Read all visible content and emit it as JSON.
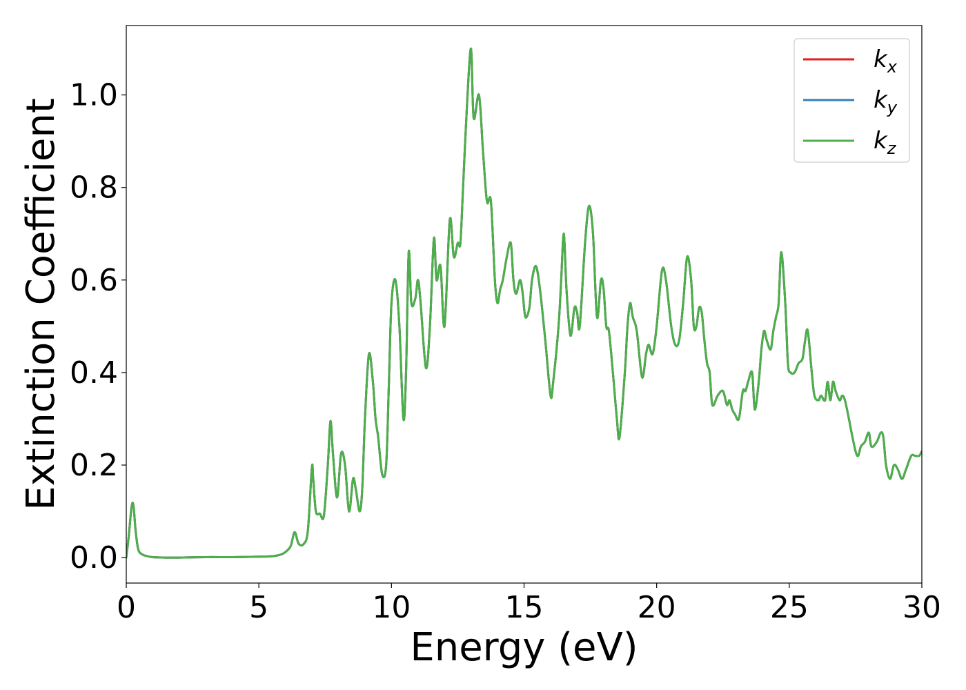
{
  "chart_data": {
    "type": "line",
    "title": "",
    "xlabel": "Energy (eV)",
    "ylabel": "Extinction Coefficient",
    "xlim": [
      0,
      30
    ],
    "ylim": [
      -0.055,
      1.15
    ],
    "xticks": [
      0,
      5,
      10,
      15,
      20,
      25,
      30
    ],
    "xtick_labels": [
      "0",
      "5",
      "10",
      "15",
      "20",
      "25",
      "30"
    ],
    "yticks": [
      0.0,
      0.2,
      0.4,
      0.6,
      0.8,
      1.0
    ],
    "ytick_labels": [
      "0.0",
      "0.2",
      "0.4",
      "0.6",
      "0.8",
      "1.0"
    ],
    "grid": false,
    "legend_position": "top-right",
    "x": [
      0,
      0.1,
      0.2,
      0.27,
      0.35,
      0.45,
      0.6,
      0.8,
      1.0,
      1.5,
      2,
      3,
      4,
      5,
      5.5,
      5.8,
      6.0,
      6.2,
      6.35,
      6.5,
      6.7,
      6.85,
      7.0,
      7.05,
      7.15,
      7.3,
      7.45,
      7.6,
      7.7,
      7.8,
      7.95,
      8.1,
      8.25,
      8.4,
      8.55,
      8.65,
      8.8,
      8.9,
      9.0,
      9.15,
      9.3,
      9.4,
      9.5,
      9.65,
      9.8,
      9.9,
      10.0,
      10.15,
      10.3,
      10.45,
      10.55,
      10.65,
      10.75,
      10.9,
      11.0,
      11.1,
      11.3,
      11.45,
      11.6,
      11.7,
      11.85,
      12.0,
      12.2,
      12.35,
      12.5,
      12.6,
      12.7,
      12.85,
      13.0,
      13.1,
      13.3,
      13.45,
      13.6,
      13.75,
      13.9,
      14.0,
      14.1,
      14.2,
      14.35,
      14.5,
      14.6,
      14.7,
      14.85,
      14.95,
      15.05,
      15.2,
      15.3,
      15.45,
      15.6,
      15.8,
      16.0,
      16.1,
      16.3,
      16.4,
      16.5,
      16.6,
      16.75,
      16.9,
      17.0,
      17.1,
      17.3,
      17.45,
      17.6,
      17.75,
      17.9,
      18.0,
      18.1,
      18.2,
      18.35,
      18.5,
      18.6,
      18.8,
      18.9,
      19.0,
      19.1,
      19.25,
      19.45,
      19.6,
      19.7,
      19.85,
      20.0,
      20.2,
      20.35,
      20.55,
      20.7,
      20.85,
      21.0,
      21.15,
      21.3,
      21.4,
      21.5,
      21.6,
      21.7,
      21.8,
      21.9,
      22.0,
      22.1,
      22.3,
      22.5,
      22.65,
      22.75,
      22.85,
      22.95,
      23.1,
      23.25,
      23.35,
      23.45,
      23.6,
      23.7,
      23.85,
      23.95,
      24.05,
      24.15,
      24.3,
      24.4,
      24.5,
      24.6,
      24.7,
      24.85,
      24.95,
      25.05,
      25.2,
      25.35,
      25.5,
      25.6,
      25.7,
      25.85,
      25.95,
      26.1,
      26.2,
      26.35,
      26.45,
      26.55,
      26.65,
      26.75,
      26.9,
      27.0,
      27.1,
      27.25,
      27.35,
      27.5,
      27.6,
      27.7,
      27.85,
      28.0,
      28.1,
      28.3,
      28.45,
      28.55,
      28.65,
      28.8,
      28.95,
      29.1,
      29.25,
      29.4,
      29.6,
      29.75,
      29.9,
      30.0
    ],
    "series": [
      {
        "name": "k_x",
        "color": "#e41a1c",
        "values": [
          0.0,
          0.05,
          0.11,
          0.113,
          0.06,
          0.018,
          0.007,
          0.003,
          0.001,
          0.0,
          0.0,
          0.001,
          0.001,
          0.002,
          0.003,
          0.006,
          0.012,
          0.025,
          0.055,
          0.03,
          0.03,
          0.06,
          0.195,
          0.17,
          0.1,
          0.095,
          0.09,
          0.2,
          0.295,
          0.22,
          0.13,
          0.225,
          0.2,
          0.1,
          0.17,
          0.15,
          0.1,
          0.15,
          0.3,
          0.44,
          0.38,
          0.3,
          0.26,
          0.18,
          0.2,
          0.37,
          0.55,
          0.6,
          0.5,
          0.3,
          0.4,
          0.66,
          0.55,
          0.56,
          0.6,
          0.55,
          0.41,
          0.5,
          0.69,
          0.6,
          0.63,
          0.5,
          0.73,
          0.65,
          0.68,
          0.68,
          0.8,
          0.98,
          1.1,
          0.95,
          1.0,
          0.88,
          0.77,
          0.77,
          0.6,
          0.55,
          0.58,
          0.6,
          0.65,
          0.68,
          0.6,
          0.57,
          0.6,
          0.57,
          0.52,
          0.54,
          0.6,
          0.63,
          0.58,
          0.47,
          0.35,
          0.38,
          0.5,
          0.6,
          0.7,
          0.58,
          0.48,
          0.54,
          0.53,
          0.5,
          0.68,
          0.76,
          0.7,
          0.52,
          0.6,
          0.58,
          0.5,
          0.49,
          0.4,
          0.3,
          0.26,
          0.4,
          0.5,
          0.55,
          0.52,
          0.49,
          0.39,
          0.44,
          0.46,
          0.44,
          0.5,
          0.62,
          0.6,
          0.5,
          0.46,
          0.47,
          0.55,
          0.65,
          0.6,
          0.5,
          0.5,
          0.54,
          0.53,
          0.47,
          0.42,
          0.4,
          0.33,
          0.35,
          0.36,
          0.33,
          0.34,
          0.32,
          0.31,
          0.3,
          0.36,
          0.36,
          0.38,
          0.4,
          0.32,
          0.38,
          0.45,
          0.49,
          0.47,
          0.45,
          0.49,
          0.52,
          0.55,
          0.66,
          0.55,
          0.42,
          0.4,
          0.4,
          0.42,
          0.43,
          0.47,
          0.49,
          0.4,
          0.35,
          0.34,
          0.35,
          0.34,
          0.38,
          0.34,
          0.38,
          0.36,
          0.34,
          0.35,
          0.34,
          0.3,
          0.27,
          0.23,
          0.22,
          0.24,
          0.25,
          0.27,
          0.24,
          0.25,
          0.27,
          0.26,
          0.2,
          0.17,
          0.2,
          0.19,
          0.17,
          0.19,
          0.22,
          0.22,
          0.22,
          0.23
        ]
      },
      {
        "name": "k_y",
        "color": "#377eb8",
        "values": [
          0.0,
          0.05,
          0.11,
          0.113,
          0.06,
          0.018,
          0.007,
          0.003,
          0.001,
          0.0,
          0.0,
          0.001,
          0.001,
          0.002,
          0.003,
          0.006,
          0.012,
          0.025,
          0.055,
          0.03,
          0.03,
          0.06,
          0.195,
          0.17,
          0.1,
          0.095,
          0.09,
          0.2,
          0.295,
          0.22,
          0.13,
          0.225,
          0.2,
          0.1,
          0.17,
          0.15,
          0.1,
          0.15,
          0.3,
          0.44,
          0.38,
          0.3,
          0.26,
          0.18,
          0.2,
          0.37,
          0.55,
          0.6,
          0.5,
          0.3,
          0.4,
          0.66,
          0.55,
          0.56,
          0.6,
          0.55,
          0.41,
          0.5,
          0.69,
          0.6,
          0.63,
          0.5,
          0.73,
          0.65,
          0.68,
          0.68,
          0.8,
          0.98,
          1.1,
          0.95,
          1.0,
          0.88,
          0.77,
          0.77,
          0.6,
          0.55,
          0.58,
          0.6,
          0.65,
          0.68,
          0.6,
          0.57,
          0.6,
          0.57,
          0.52,
          0.54,
          0.6,
          0.63,
          0.58,
          0.47,
          0.35,
          0.38,
          0.5,
          0.6,
          0.7,
          0.58,
          0.48,
          0.54,
          0.53,
          0.5,
          0.68,
          0.76,
          0.7,
          0.52,
          0.6,
          0.58,
          0.5,
          0.49,
          0.4,
          0.3,
          0.26,
          0.4,
          0.5,
          0.55,
          0.52,
          0.49,
          0.39,
          0.44,
          0.46,
          0.44,
          0.5,
          0.62,
          0.6,
          0.5,
          0.46,
          0.47,
          0.55,
          0.65,
          0.6,
          0.5,
          0.5,
          0.54,
          0.53,
          0.47,
          0.42,
          0.4,
          0.33,
          0.35,
          0.36,
          0.33,
          0.34,
          0.32,
          0.31,
          0.3,
          0.36,
          0.36,
          0.38,
          0.4,
          0.32,
          0.38,
          0.45,
          0.49,
          0.47,
          0.45,
          0.49,
          0.52,
          0.55,
          0.66,
          0.55,
          0.42,
          0.4,
          0.4,
          0.42,
          0.43,
          0.47,
          0.49,
          0.4,
          0.35,
          0.34,
          0.35,
          0.34,
          0.38,
          0.34,
          0.38,
          0.36,
          0.34,
          0.35,
          0.34,
          0.3,
          0.27,
          0.23,
          0.22,
          0.24,
          0.25,
          0.27,
          0.24,
          0.25,
          0.27,
          0.26,
          0.2,
          0.17,
          0.2,
          0.19,
          0.17,
          0.19,
          0.22,
          0.22,
          0.22,
          0.23
        ]
      },
      {
        "name": "k_z",
        "color": "#4daf4a",
        "values": [
          0.0,
          0.05,
          0.11,
          0.113,
          0.06,
          0.018,
          0.007,
          0.003,
          0.001,
          0.0,
          0.0,
          0.001,
          0.001,
          0.002,
          0.003,
          0.006,
          0.012,
          0.025,
          0.055,
          0.03,
          0.03,
          0.06,
          0.195,
          0.17,
          0.1,
          0.095,
          0.09,
          0.2,
          0.295,
          0.22,
          0.13,
          0.225,
          0.2,
          0.1,
          0.17,
          0.15,
          0.1,
          0.15,
          0.3,
          0.44,
          0.38,
          0.3,
          0.26,
          0.18,
          0.2,
          0.37,
          0.55,
          0.6,
          0.5,
          0.3,
          0.4,
          0.66,
          0.55,
          0.56,
          0.6,
          0.55,
          0.41,
          0.5,
          0.69,
          0.6,
          0.63,
          0.5,
          0.73,
          0.65,
          0.68,
          0.68,
          0.8,
          0.98,
          1.1,
          0.95,
          1.0,
          0.88,
          0.77,
          0.77,
          0.6,
          0.55,
          0.58,
          0.6,
          0.65,
          0.68,
          0.6,
          0.57,
          0.6,
          0.57,
          0.52,
          0.54,
          0.6,
          0.63,
          0.58,
          0.47,
          0.35,
          0.38,
          0.5,
          0.6,
          0.7,
          0.58,
          0.48,
          0.54,
          0.53,
          0.5,
          0.68,
          0.76,
          0.7,
          0.52,
          0.6,
          0.58,
          0.5,
          0.49,
          0.4,
          0.3,
          0.26,
          0.4,
          0.5,
          0.55,
          0.52,
          0.49,
          0.39,
          0.44,
          0.46,
          0.44,
          0.5,
          0.62,
          0.6,
          0.5,
          0.46,
          0.47,
          0.55,
          0.65,
          0.6,
          0.5,
          0.5,
          0.54,
          0.53,
          0.47,
          0.42,
          0.4,
          0.33,
          0.35,
          0.36,
          0.33,
          0.34,
          0.32,
          0.31,
          0.3,
          0.36,
          0.36,
          0.38,
          0.4,
          0.32,
          0.38,
          0.45,
          0.49,
          0.47,
          0.45,
          0.49,
          0.52,
          0.55,
          0.66,
          0.55,
          0.42,
          0.4,
          0.4,
          0.42,
          0.43,
          0.47,
          0.49,
          0.4,
          0.35,
          0.34,
          0.35,
          0.34,
          0.38,
          0.34,
          0.38,
          0.36,
          0.34,
          0.35,
          0.34,
          0.3,
          0.27,
          0.23,
          0.22,
          0.24,
          0.25,
          0.27,
          0.24,
          0.25,
          0.27,
          0.26,
          0.2,
          0.17,
          0.2,
          0.19,
          0.17,
          0.19,
          0.22,
          0.22,
          0.22,
          0.23
        ]
      }
    ],
    "legend": [
      {
        "base": "k",
        "sub": "x",
        "color": "#e41a1c"
      },
      {
        "base": "k",
        "sub": "y",
        "color": "#377eb8"
      },
      {
        "base": "k",
        "sub": "z",
        "color": "#4daf4a"
      }
    ]
  }
}
